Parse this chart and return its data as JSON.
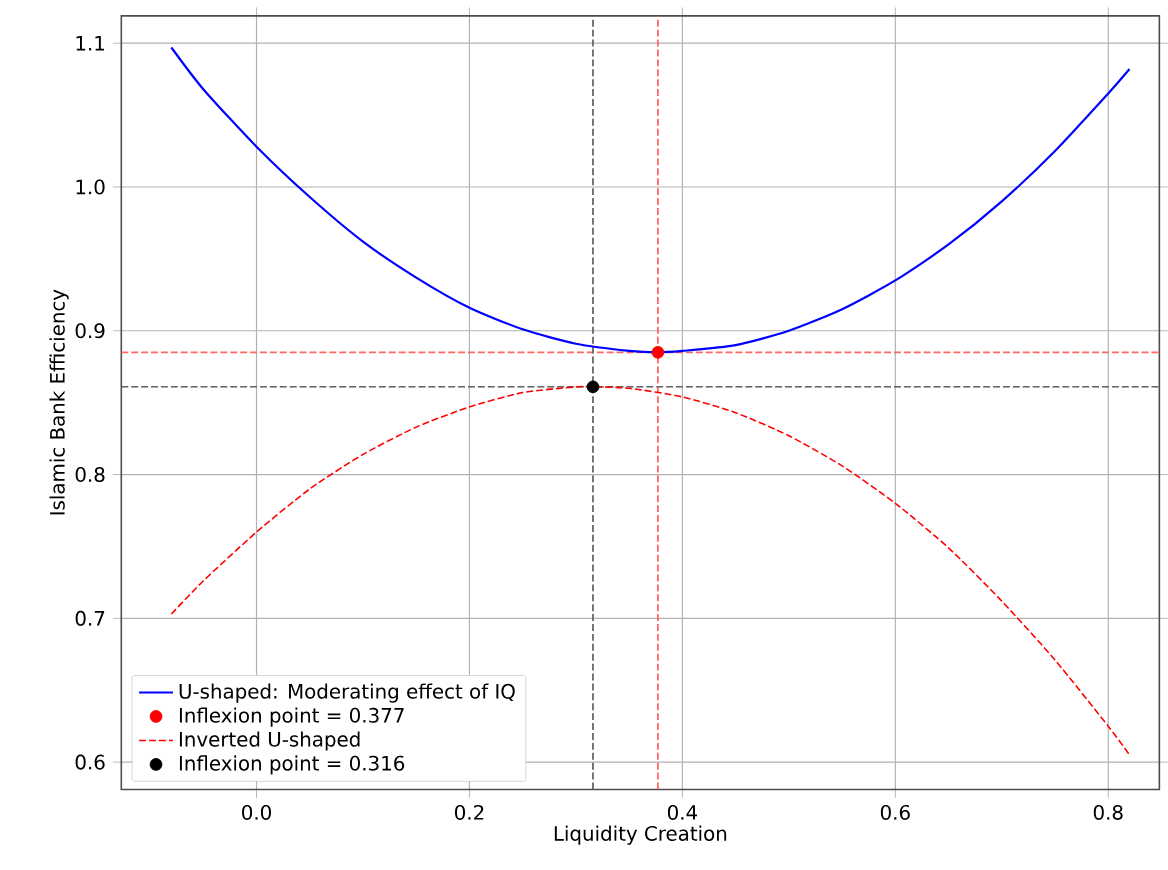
{
  "chart_data": {
    "type": "line",
    "xlabel": "Liquidity Creation",
    "ylabel": "Islamic Bank Efficiency",
    "xlim": [
      -0.127,
      0.848
    ],
    "ylim": [
      0.581,
      1.119
    ],
    "xticks": [
      {
        "value": 0,
        "label": "0.0"
      },
      0.2,
      0.4,
      0.6,
      0.8
    ],
    "yticks": [
      0.6,
      0.7,
      0.8,
      0.9,
      {
        "value": 1,
        "label": "1.0"
      },
      1.1
    ],
    "grid": true,
    "legend": "bottom left",
    "series": [
      {
        "name": "U-shaped: Moderating effect of IQ",
        "type": "line",
        "color": "#0000ff",
        "line_style": "solid",
        "x": [
          -0.08,
          -0.05,
          0,
          0.05,
          0.1,
          0.15,
          0.2,
          0.25,
          0.3,
          0.35,
          0.377,
          0.4,
          0.45,
          0.5,
          0.55,
          0.6,
          0.65,
          0.7,
          0.75,
          0.8,
          0.82
        ],
        "values": [
          1.097,
          1.068,
          1.028,
          0.993,
          0.962,
          0.937,
          0.916,
          0.901,
          0.891,
          0.886,
          0.885,
          0.886,
          0.89,
          0.9,
          0.915,
          0.935,
          0.96,
          0.99,
          1.025,
          1.065,
          1.082
        ]
      },
      {
        "name": "Inflexion point  = 0.377",
        "type": "scatter",
        "color": "#ff0000",
        "marker": "circle",
        "x": [
          0.377
        ],
        "values": [
          0.885
        ]
      },
      {
        "name": "Inverted U-shaped",
        "type": "line",
        "color": "#ff0000",
        "line_style": "dashed",
        "x": [
          -0.08,
          -0.05,
          0,
          0.05,
          0.1,
          0.15,
          0.2,
          0.25,
          0.3,
          0.316,
          0.35,
          0.4,
          0.45,
          0.5,
          0.55,
          0.6,
          0.65,
          0.7,
          0.75,
          0.8,
          0.82
        ],
        "values": [
          0.703,
          0.726,
          0.76,
          0.79,
          0.814,
          0.833,
          0.847,
          0.857,
          0.861,
          0.861,
          0.86,
          0.854,
          0.843,
          0.827,
          0.806,
          0.78,
          0.749,
          0.712,
          0.671,
          0.625,
          0.605
        ]
      },
      {
        "name": "Inflexion point = 0.316",
        "type": "scatter",
        "color": "#000000",
        "marker": "circle",
        "x": [
          0.316
        ],
        "values": [
          0.861
        ]
      }
    ],
    "ref_lines": [
      {
        "axis": "x",
        "value": 0.377,
        "color": "#ff6666",
        "line_style": "dashed"
      },
      {
        "axis": "y",
        "value": 0.885,
        "color": "#ff6666",
        "line_style": "dashed"
      },
      {
        "axis": "x",
        "value": 0.316,
        "color": "#666666",
        "line_style": "dashed"
      },
      {
        "axis": "y",
        "value": 0.861,
        "color": "#666666",
        "line_style": "dashed"
      }
    ]
  }
}
